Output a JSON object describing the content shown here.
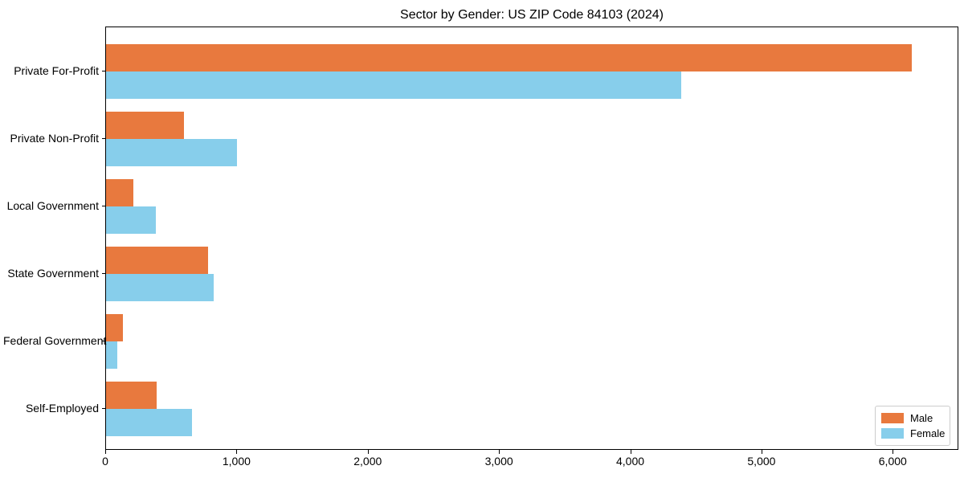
{
  "title": "Sector by Gender: US ZIP Code 84103 (2024)",
  "colors": {
    "male": "#e8793e",
    "female": "#87ceeb",
    "axis": "#000000",
    "legend_border": "#cccccc",
    "background": "#ffffff"
  },
  "legend": {
    "entries": [
      "Male",
      "Female"
    ],
    "position": "lower right"
  },
  "chart_data": {
    "type": "bar",
    "orientation": "horizontal",
    "title": "Sector by Gender: US ZIP Code 84103 (2024)",
    "categories": [
      "Private For-Profit",
      "Private Non-Profit",
      "Local Government",
      "State Government",
      "Federal Government",
      "Self-Employed"
    ],
    "series": [
      {
        "name": "Male",
        "color": "#e8793e",
        "values": [
          6140,
          595,
          210,
          775,
          130,
          385
        ]
      },
      {
        "name": "Female",
        "color": "#87ceeb",
        "values": [
          4380,
          1000,
          380,
          820,
          85,
          655
        ]
      }
    ],
    "xlabel": "",
    "ylabel": "",
    "xlim": [
      0,
      6500
    ],
    "xticks": [
      0,
      1000,
      2000,
      3000,
      4000,
      5000,
      6000
    ],
    "xtick_labels": [
      "0",
      "1,000",
      "2,000",
      "3,000",
      "4,000",
      "5,000",
      "6,000"
    ],
    "grid": false,
    "legend_position": "lower right"
  }
}
